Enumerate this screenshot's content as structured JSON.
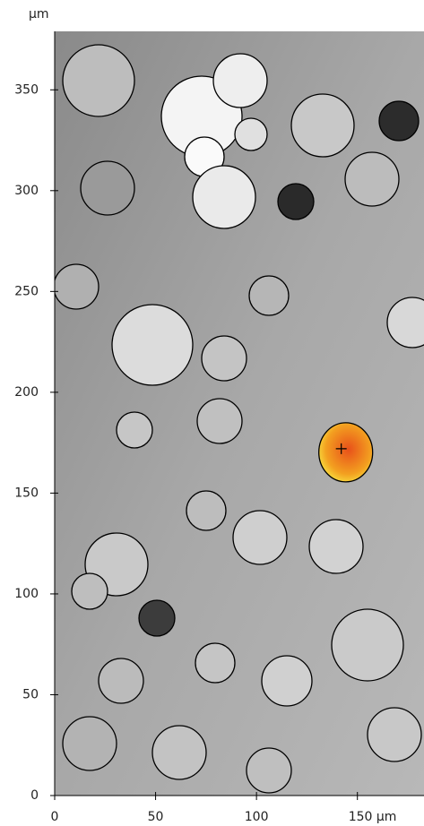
{
  "chart_data": {
    "type": "image",
    "y_unit_label": "µm",
    "xlim": [
      0,
      183
    ],
    "ylim": [
      0,
      379
    ],
    "xticks": [
      0,
      50,
      100,
      {
        "value": 150,
        "label": "150 µm"
      }
    ],
    "yticks": [
      0,
      50,
      100,
      150,
      200,
      250,
      300,
      350
    ],
    "marker": {
      "x": 142,
      "y": 172,
      "color": "#f07020"
    }
  }
}
